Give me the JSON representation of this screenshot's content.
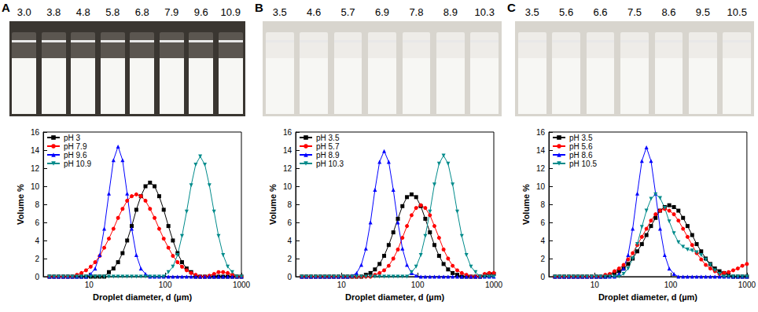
{
  "chart_data": [
    {
      "type": "line",
      "panel": "A",
      "vial_labels": [
        "3.0",
        "3.8",
        "4.8",
        "5.8",
        "6.8",
        "7.9",
        "9.6",
        "10.9"
      ],
      "x_label": "Droplet diameter, d (µm)",
      "y_label": "Volume %",
      "log": "x",
      "grid": false,
      "legend": "upper left",
      "xlim": [
        2.5,
        1000
      ],
      "xticks": [
        10,
        100,
        1000
      ],
      "ylim": [
        0,
        16
      ],
      "yticks": [
        0,
        2,
        4,
        6,
        8,
        10,
        12,
        14,
        16
      ],
      "x": [
        3.02,
        3.47,
        3.98,
        4.57,
        5.25,
        6.03,
        6.92,
        7.94,
        9.12,
        10.5,
        12.0,
        13.8,
        15.8,
        18.2,
        20.9,
        24.0,
        27.5,
        31.6,
        36.3,
        41.7,
        47.9,
        55.0,
        63.1,
        72.4,
        83.2,
        95.5,
        110,
        126,
        145,
        166,
        191,
        219,
        251,
        288,
        331,
        380,
        437,
        501,
        575,
        661,
        759,
        871,
        1000
      ],
      "series": [
        {
          "name": "pH 3",
          "color": "#000000",
          "marker": "square",
          "values": [
            0,
            0,
            0,
            0,
            0,
            0,
            0,
            0,
            0,
            0,
            0,
            0,
            0,
            0.5,
            0.9,
            1.6,
            2.6,
            4.0,
            5.6,
            7.4,
            8.9,
            10.0,
            10.4,
            10.0,
            8.9,
            7.4,
            5.6,
            4.0,
            2.6,
            1.6,
            0.9,
            0.5,
            0,
            0,
            0,
            0,
            0,
            0,
            0,
            0,
            0,
            0,
            0
          ]
        },
        {
          "name": "pH 7.9",
          "color": "#ff0000",
          "marker": "circle",
          "values": [
            0,
            0,
            0,
            0,
            0,
            0,
            0.2,
            0.4,
            0.7,
            1.1,
            1.6,
            2.3,
            3.2,
            4.2,
            5.3,
            6.5,
            7.5,
            8.4,
            8.9,
            9.1,
            8.9,
            8.4,
            7.5,
            6.5,
            5.3,
            4.2,
            3.2,
            2.3,
            1.6,
            1.1,
            0.7,
            0.4,
            0.2,
            0,
            0,
            0.1,
            0.3,
            0.5,
            0.5,
            0.4,
            0.2,
            0,
            0
          ]
        },
        {
          "name": "pH 9.6",
          "color": "#0000ff",
          "marker": "triangle",
          "values": [
            0,
            0,
            0,
            0,
            0,
            0,
            0,
            0,
            0,
            0.3,
            0.9,
            2.4,
            5.3,
            9.2,
            12.9,
            14.4,
            12.9,
            9.2,
            5.3,
            2.4,
            0.9,
            0.3,
            0,
            0,
            0,
            0,
            0,
            0,
            0,
            0,
            0,
            0,
            0,
            0,
            0,
            0,
            0,
            0,
            0,
            0,
            0,
            0,
            0
          ]
        },
        {
          "name": "pH 10.9",
          "color": "#008b8b",
          "marker": "triangle_down",
          "values": [
            0,
            0,
            0,
            0,
            0,
            0,
            0,
            0,
            0,
            0,
            0,
            0,
            0,
            0,
            0,
            0,
            0,
            0,
            0,
            0,
            0,
            0,
            0,
            0,
            0,
            0,
            0.5,
            1.1,
            2.4,
            4.5,
            7.2,
            10.1,
            12.4,
            13.3,
            12.4,
            10.1,
            7.2,
            4.5,
            2.4,
            1.1,
            0.5,
            0,
            0
          ]
        }
      ]
    },
    {
      "type": "line",
      "panel": "B",
      "vial_labels": [
        "3.5",
        "4.6",
        "5.7",
        "6.9",
        "7.8",
        "8.9",
        "10.3"
      ],
      "x_label": "Droplet diameter, d (µm)",
      "y_label": "Volume %",
      "log": "x",
      "grid": false,
      "legend": "upper left",
      "xlim": [
        2.5,
        1000
      ],
      "xticks": [
        10,
        100,
        1000
      ],
      "ylim": [
        0,
        16
      ],
      "yticks": [
        0,
        2,
        4,
        6,
        8,
        10,
        12,
        14,
        16
      ],
      "x": [
        3.02,
        3.47,
        3.98,
        4.57,
        5.25,
        6.03,
        6.92,
        7.94,
        9.12,
        10.5,
        12.0,
        13.8,
        15.8,
        18.2,
        20.9,
        24.0,
        27.5,
        31.6,
        36.3,
        41.7,
        47.9,
        55.0,
        63.1,
        72.4,
        83.2,
        95.5,
        110,
        126,
        145,
        166,
        191,
        219,
        251,
        288,
        331,
        380,
        437,
        501,
        575,
        661,
        759,
        871,
        1000
      ],
      "series": [
        {
          "name": "pH 3.5",
          "color": "#000000",
          "marker": "square",
          "values": [
            0,
            0,
            0,
            0,
            0,
            0,
            0,
            0,
            0,
            0,
            0,
            0,
            0,
            0,
            0.2,
            0.4,
            0.8,
            1.4,
            2.3,
            3.5,
            4.9,
            6.4,
            7.8,
            8.8,
            9.1,
            8.8,
            7.8,
            6.4,
            4.9,
            3.5,
            2.3,
            1.4,
            0.8,
            0.4,
            0.2,
            0,
            0,
            0,
            0,
            0,
            0.2,
            0.3,
            0.3
          ]
        },
        {
          "name": "pH 5.7",
          "color": "#ff0000",
          "marker": "circle",
          "values": [
            0,
            0,
            0,
            0,
            0,
            0,
            0,
            0,
            0,
            0,
            0,
            0,
            0,
            0,
            0,
            0,
            0.2,
            0.4,
            0.7,
            1.2,
            2.0,
            3.0,
            4.3,
            5.6,
            6.8,
            7.6,
            7.9,
            7.6,
            6.8,
            5.6,
            4.3,
            3.0,
            2.0,
            1.2,
            0.7,
            0.4,
            0.2,
            0,
            0,
            0,
            0.3,
            0.4,
            0.4
          ]
        },
        {
          "name": "pH 8.9",
          "color": "#0000ff",
          "marker": "triangle",
          "values": [
            0,
            0,
            0,
            0,
            0,
            0,
            0,
            0,
            0,
            0,
            0,
            0.1,
            0.4,
            1.3,
            3.1,
            6.0,
            9.6,
            12.7,
            13.9,
            12.7,
            9.6,
            6.0,
            3.1,
            1.3,
            0.4,
            0.1,
            0,
            0,
            0,
            0,
            0,
            0,
            0,
            0,
            0,
            0,
            0,
            0,
            0,
            0,
            0,
            0,
            0
          ]
        },
        {
          "name": "pH 10.3",
          "color": "#008b8b",
          "marker": "triangle_down",
          "values": [
            0,
            0,
            0,
            0,
            0,
            0,
            0,
            0,
            0,
            0,
            0,
            0,
            0,
            0,
            0,
            0,
            0,
            0,
            0,
            0,
            0,
            0,
            0,
            0,
            0.5,
            1.1,
            2.4,
            4.5,
            7.2,
            10.2,
            12.5,
            13.4,
            12.5,
            10.2,
            7.2,
            4.5,
            2.4,
            1.1,
            0.5,
            0,
            0,
            0,
            0
          ]
        }
      ]
    },
    {
      "type": "line",
      "panel": "C",
      "vial_labels": [
        "3.5",
        "5.6",
        "6.6",
        "7.5",
        "8.6",
        "9.5",
        "10.5"
      ],
      "x_label": "Droplet diameter, d (µm)",
      "y_label": "Volume %",
      "log": "x",
      "grid": false,
      "legend": "upper left",
      "xlim": [
        2.5,
        1000
      ],
      "xticks": [
        10,
        100,
        1000
      ],
      "ylim": [
        0,
        16
      ],
      "yticks": [
        0,
        2,
        4,
        6,
        8,
        10,
        12,
        14,
        16
      ],
      "x": [
        3.02,
        3.47,
        3.98,
        4.57,
        5.25,
        6.03,
        6.92,
        7.94,
        9.12,
        10.5,
        12.0,
        13.8,
        15.8,
        18.2,
        20.9,
        24.0,
        27.5,
        31.6,
        36.3,
        41.7,
        47.9,
        55.0,
        63.1,
        72.4,
        83.2,
        95.5,
        110,
        126,
        145,
        166,
        191,
        219,
        251,
        288,
        331,
        380,
        437,
        501,
        575,
        661,
        759,
        871,
        1000
      ],
      "series": [
        {
          "name": "pH 3.5",
          "color": "#000000",
          "marker": "square",
          "values": [
            0,
            0,
            0,
            0,
            0,
            0,
            0,
            0,
            0,
            0,
            0,
            0,
            0.2,
            0.4,
            0.6,
            0.9,
            1.4,
            2.0,
            2.8,
            3.6,
            4.6,
            5.6,
            6.5,
            7.3,
            7.7,
            7.9,
            7.7,
            7.3,
            6.5,
            5.6,
            4.6,
            3.6,
            2.8,
            2.0,
            1.4,
            0.9,
            0.6,
            0.4,
            0.2,
            0,
            0,
            0,
            0
          ]
        },
        {
          "name": "pH 5.6",
          "color": "#ff0000",
          "marker": "circle",
          "values": [
            0,
            0,
            0,
            0,
            0,
            0,
            0,
            0,
            0,
            0,
            0,
            0.2,
            0.3,
            0.6,
            0.9,
            1.3,
            1.9,
            2.6,
            3.5,
            4.4,
            5.3,
            6.2,
            6.9,
            7.3,
            7.5,
            7.3,
            6.9,
            6.2,
            5.3,
            4.4,
            3.5,
            2.6,
            1.9,
            1.3,
            0.9,
            0.6,
            0.3,
            0.4,
            0.5,
            0.7,
            0.9,
            1.2,
            1.4
          ]
        },
        {
          "name": "pH 8.6",
          "color": "#0000ff",
          "marker": "triangle",
          "values": [
            0,
            0,
            0,
            0,
            0,
            0,
            0,
            0,
            0,
            0,
            0,
            0,
            0,
            0,
            0.3,
            0.9,
            2.4,
            5.3,
            9.2,
            12.8,
            14.3,
            12.8,
            9.2,
            5.3,
            2.4,
            0.9,
            0.3,
            0,
            0,
            0,
            0,
            0,
            0,
            0,
            0,
            0,
            0,
            0,
            0,
            0,
            0,
            0,
            0
          ]
        },
        {
          "name": "pH 10.5",
          "color": "#008b8b",
          "marker": "triangle_down",
          "values": [
            0,
            0,
            0,
            0,
            0,
            0,
            0,
            0,
            0,
            0,
            0,
            0,
            0,
            0,
            0,
            0.3,
            0.9,
            2.0,
            3.6,
            5.5,
            7.3,
            8.6,
            9.1,
            8.7,
            7.6,
            6.1,
            4.8,
            3.8,
            3.3,
            3.0,
            2.9,
            2.7,
            2.4,
            1.9,
            1.3,
            0.7,
            0.3,
            0,
            0,
            0,
            0,
            0,
            0
          ]
        }
      ]
    }
  ]
}
